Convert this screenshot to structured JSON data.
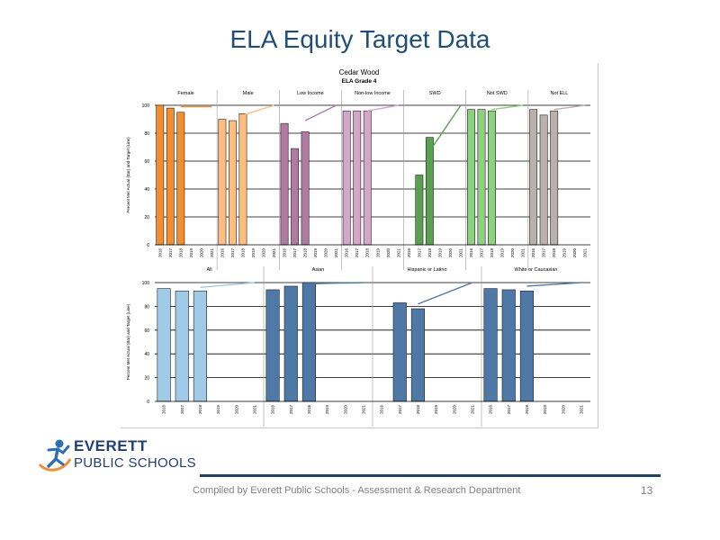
{
  "slide": {
    "title": "ELA Equity Target Data",
    "footer": "Compiled  by Everett Public Schools - Assessment & Research Department",
    "page_number": "13",
    "logo_line1": "EVERETT",
    "logo_line2": "PUBLIC SCHOOLS"
  },
  "chart_data": [
    {
      "type": "bar",
      "title": "Cedar Wood",
      "subtitle": "ELA Grade 4",
      "ylabel": "Percent Met Actual (Bar) and Target (Line)",
      "ylim": [
        0,
        100
      ],
      "yticks": [
        0,
        20,
        40,
        60,
        80,
        100
      ],
      "grid": true,
      "years": [
        "2016",
        "2017",
        "2018",
        "2019",
        "2020",
        "2021"
      ],
      "groups": [
        {
          "name": "Female",
          "color": "#f28e2b",
          "values": [
            100,
            98,
            95,
            null,
            null,
            null
          ],
          "target": [
            99,
            99
          ]
        },
        {
          "name": "Male",
          "color": "#ffbe7d",
          "values": [
            90,
            89,
            94,
            null,
            null,
            null
          ],
          "target": [
            93,
            100
          ]
        },
        {
          "name": "Low Income",
          "color": "#b07aa1",
          "values": [
            87,
            69,
            81,
            null,
            null,
            null
          ],
          "target": [
            89,
            100
          ]
        },
        {
          "name": "Non-low Income",
          "color": "#d4a6c8",
          "values": [
            96,
            96,
            96,
            null,
            null,
            null
          ],
          "target": [
            96,
            100
          ]
        },
        {
          "name": "SWD",
          "color": "#59a14f",
          "values": [
            null,
            50,
            77,
            null,
            null,
            null
          ],
          "target": [
            67,
            100
          ]
        },
        {
          "name": "Not SWD",
          "color": "#8cd17d",
          "values": [
            97,
            97,
            96,
            null,
            null,
            null
          ],
          "target": [
            97,
            100
          ]
        },
        {
          "name": "Not ELL",
          "color": "#bab0ac",
          "values": [
            97,
            93,
            96,
            null,
            null,
            null
          ],
          "target": [
            97,
            100
          ]
        }
      ]
    },
    {
      "type": "bar",
      "ylabel": "Percent Met Actual (Bar) and Target (Line)",
      "ylim": [
        0,
        100
      ],
      "yticks": [
        0,
        20,
        40,
        60,
        80,
        100
      ],
      "grid": true,
      "years": [
        "2016",
        "2017",
        "2018",
        "2019",
        "2020",
        "2021"
      ],
      "groups": [
        {
          "name": "All",
          "color": "#a0cbe8",
          "values": [
            95,
            93,
            93,
            null,
            null,
            null
          ],
          "target": [
            96,
            100
          ]
        },
        {
          "name": "Asian",
          "color": "#4e79a7",
          "values": [
            94,
            97,
            100,
            null,
            null,
            null
          ],
          "target": [
            99,
            100
          ]
        },
        {
          "name": "Hispanic or Latino",
          "color": "#4e79a7",
          "values": [
            null,
            83,
            78,
            null,
            null,
            null
          ],
          "target": [
            82,
            100
          ]
        },
        {
          "name": "White or Caucasian",
          "color": "#4e79a7",
          "values": [
            95,
            94,
            93,
            null,
            null,
            null
          ],
          "target": [
            97,
            100
          ]
        }
      ]
    }
  ]
}
